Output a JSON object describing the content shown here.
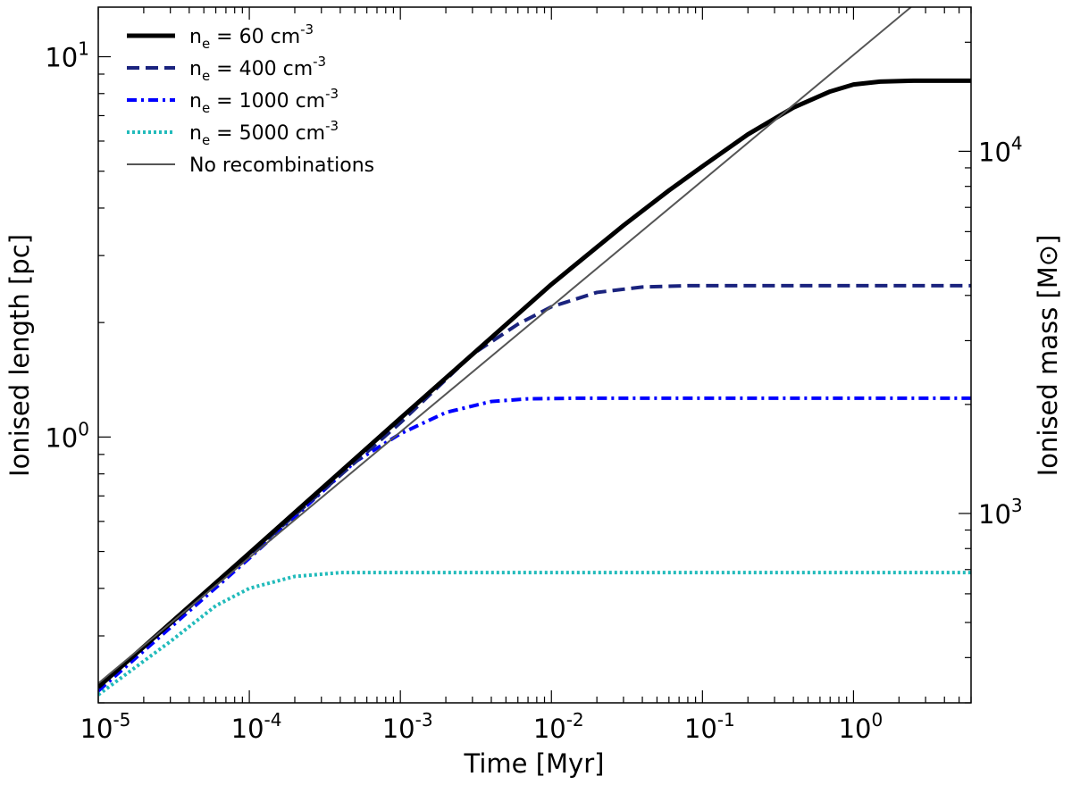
{
  "chart_data": {
    "type": "line",
    "title": "",
    "xlabel": "Time [Myr]",
    "ylabel": "Ionised length [pc]",
    "y2label": "Ionised mass [M⊙]",
    "xscale": "log",
    "yscale": "log",
    "xlim": [
      1e-05,
      6.0
    ],
    "ylim": [
      0.2,
      13.5
    ],
    "y2lim": [
      300,
      25000
    ],
    "grid": false,
    "legend_position": "top-left",
    "x_ticks": [
      {
        "value": 1e-05,
        "base": "10",
        "exp": "-5"
      },
      {
        "value": 0.0001,
        "base": "10",
        "exp": "-4"
      },
      {
        "value": 0.001,
        "base": "10",
        "exp": "-3"
      },
      {
        "value": 0.01,
        "base": "10",
        "exp": "-2"
      },
      {
        "value": 0.1,
        "base": "10",
        "exp": "-1"
      },
      {
        "value": 1,
        "base": "10",
        "exp": "0"
      }
    ],
    "y_ticks": [
      {
        "value": 1,
        "base": "10",
        "exp": "0"
      },
      {
        "value": 10,
        "base": "10",
        "exp": "1"
      }
    ],
    "y2_ticks": [
      {
        "value": 1000,
        "base": "10",
        "exp": "3"
      },
      {
        "value": 10000,
        "base": "10",
        "exp": "4"
      }
    ],
    "series": [
      {
        "name": "n_e = 60 cm^-3",
        "legend": {
          "sym": "n",
          "sub": "e",
          "eq": " = 60 cm",
          "sup": "-3"
        },
        "color": "#000000",
        "style": "solid",
        "width": 5,
        "x": [
          1e-05,
          0.0001,
          0.001,
          0.01,
          0.03,
          0.06,
          0.1,
          0.2,
          0.4,
          0.7,
          1.0,
          1.5,
          2.5,
          6.0
        ],
        "values": [
          0.22,
          0.495,
          1.12,
          2.52,
          3.6,
          4.45,
          5.15,
          6.25,
          7.35,
          8.1,
          8.45,
          8.6,
          8.65,
          8.65
        ]
      },
      {
        "name": "n_e = 400 cm^-3",
        "legend": {
          "sym": "n",
          "sub": "e",
          "eq": " = 400 cm",
          "sup": "-3"
        },
        "color": "#1a237e",
        "style": "dashed",
        "width": 4,
        "x": [
          1e-05,
          0.0001,
          0.001,
          0.003,
          0.006,
          0.01,
          0.02,
          0.04,
          0.08,
          6.0
        ],
        "values": [
          0.22,
          0.49,
          1.09,
          1.65,
          1.98,
          2.2,
          2.4,
          2.48,
          2.5,
          2.5
        ]
      },
      {
        "name": "n_e = 1000 cm^-3",
        "legend": {
          "sym": "n",
          "sub": "e",
          "eq": " = 1000 cm",
          "sup": "-3"
        },
        "color": "#0000ff",
        "style": "dashdot",
        "width": 4,
        "x": [
          1e-05,
          0.0001,
          0.0005,
          0.001,
          0.002,
          0.004,
          0.007,
          0.015,
          6.0
        ],
        "values": [
          0.215,
          0.48,
          0.86,
          1.02,
          1.16,
          1.24,
          1.26,
          1.265,
          1.265
        ]
      },
      {
        "name": "n_e = 5000 cm^-3",
        "legend": {
          "sym": "n",
          "sub": "e",
          "eq": " = 5000 cm",
          "sup": "-3"
        },
        "color": "#22bbbb",
        "style": "dotted",
        "width": 4,
        "x": [
          1e-05,
          3e-05,
          6e-05,
          0.0001,
          0.0002,
          0.0004,
          0.0008,
          6.0
        ],
        "values": [
          0.21,
          0.29,
          0.36,
          0.4,
          0.43,
          0.44,
          0.44,
          0.44
        ]
      },
      {
        "name": "No recombinations",
        "legend": {
          "sym": "No recombinations",
          "sub": "",
          "eq": "",
          "sup": ""
        },
        "color": "#555555",
        "style": "solid",
        "width": 2,
        "x": [
          1e-05,
          2.4
        ],
        "values": [
          0.225,
          13.5
        ]
      }
    ]
  }
}
